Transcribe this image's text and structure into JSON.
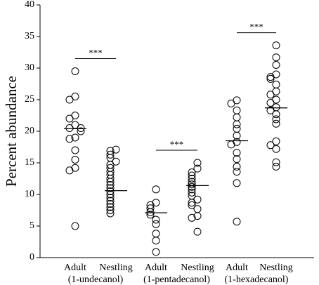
{
  "chart_data": {
    "type": "strip",
    "y_label": "Percent abundance",
    "ylim": [
      0,
      40
    ],
    "yticks": [
      0,
      5,
      10,
      15,
      20,
      25,
      30,
      35,
      40
    ],
    "color": "#000000",
    "groups": [
      {
        "name": "(1-undecanol)",
        "significance": "***",
        "categories": [
          {
            "name": "Adult",
            "center": 20.4,
            "values": [
              29.5,
              25.5,
              25,
              22.5,
              22,
              21,
              20.5,
              20.5,
              20,
              19,
              18.8,
              17,
              15.5,
              14.2,
              13.8,
              5
            ]
          },
          {
            "name": "Nestling",
            "center": 10.6,
            "values": [
              17.1,
              16.9,
              16.3,
              15.8,
              15.2,
              14.7,
              14.2,
              13.6,
              13.1,
              12.5,
              12.0,
              11.5,
              11.0,
              10.5,
              10.0,
              9.5,
              9.0,
              8.5,
              8.0,
              7.5,
              7.0
            ]
          }
        ]
      },
      {
        "name": "(1-pentadecanol)",
        "significance": "***",
        "categories": [
          {
            "name": "Adult",
            "center": 7.1,
            "values": [
              10.8,
              8.7,
              8.3,
              7.8,
              7.2,
              6.8,
              6.0,
              5.3,
              3.8,
              2.7,
              0.9
            ]
          },
          {
            "name": "Nestling",
            "center": 11.4,
            "values": [
              15.0,
              14.1,
              13.5,
              13.0,
              12.5,
              12.0,
              11.6,
              11.2,
              10.8,
              10.3,
              9.8,
              9.2,
              8.7,
              8.3,
              7.7,
              6.6,
              6.3,
              4.1
            ]
          }
        ]
      },
      {
        "name": "(1-hexadecanol)",
        "significance": "***",
        "categories": [
          {
            "name": "Adult",
            "center": 18.5,
            "values": [
              24.9,
              24.4,
              23.3,
              22.2,
              21.1,
              20.4,
              19.3,
              18.3,
              17.9,
              16.6,
              15.6,
              14.4,
              13.6,
              11.8,
              5.7
            ]
          },
          {
            "name": "Nestling",
            "center": 23.7,
            "values": [
              33.6,
              31.7,
              30.5,
              29.0,
              28.6,
              28.3,
              27.4,
              26.3,
              25.8,
              25.0,
              24.5,
              23.8,
              23.3,
              22.7,
              21.9,
              21.2,
              18.4,
              17.8,
              17.2,
              15.1,
              14.4
            ]
          }
        ]
      }
    ]
  }
}
